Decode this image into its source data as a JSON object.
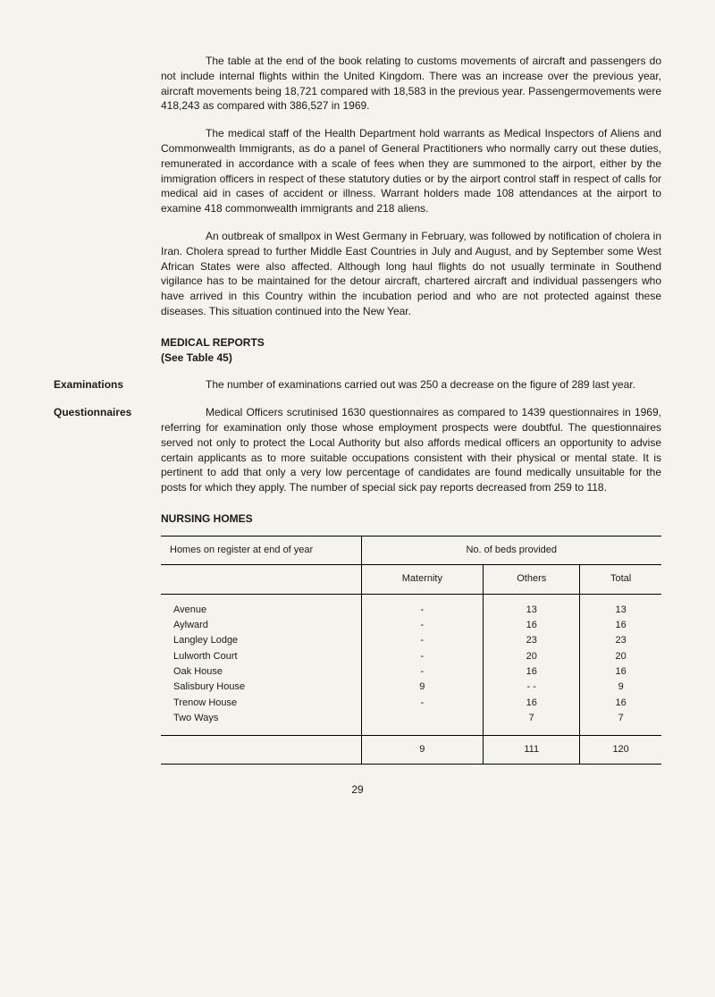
{
  "paragraphs": {
    "p1": "The table at the end of the book relating to customs movements of aircraft and passengers do not include internal flights within the United Kingdom. There was an increase over the previous year, aircraft movements being 18,721 compared with 18,583 in the previous year. Passengermovements were 418,243 as compared with 386,527 in 1969.",
    "p2": "The medical staff of the Health Department hold warrants as Medical Inspectors of Aliens and Commonwealth Immigrants, as do a panel of General Practitioners who normally carry out these duties, remunerated in accordance with a scale of fees when they are summoned to the airport, either by the immigration officers in respect of these statutory duties or by the airport control staff in respect of calls for medical aid in cases of accident or illness. Warrant holders made 108 attendances at the airport to examine 418 commonwealth immigrants and 218 aliens.",
    "p3": "An outbreak of smallpox in West Germany in February, was followed by notification of cholera in Iran. Cholera spread to further Middle East Countries in July and August, and by September some West African States were also affected. Although long haul flights do not usually terminate in Southend vigilance has to be maintained for the detour aircraft, chartered aircraft and individual passengers who have arrived in this Country within the incubation period and who are not protected against these diseases. This situation continued into the New Year."
  },
  "section1": {
    "heading": "MEDICAL REPORTS",
    "sub": "(See Table 45)"
  },
  "examinations": {
    "label": "Examinations",
    "text": "The number of examinations carried out was 250 a decrease on the figure of 289 last year."
  },
  "questionnaires": {
    "label": "Questionnaires",
    "text": "Medical Officers scrutinised 1630 questionnaires as compared to 1439 questionnaires in 1969, referring for examination only those whose employment prospects were doubtful. The questionnaires served not only to protect the Local Authority but also affords medical officers an opportunity to advise certain applicants as to more suitable occupations consistent with their physical or mental state. It is pertinent to add that only a very low percentage of candidates are found medically unsuitable for the posts for which they apply. The number of special sick pay reports decreased from 259 to 118."
  },
  "nursing": {
    "heading": "NURSING HOMES"
  },
  "table": {
    "header_homes": "Homes on register at end of year",
    "header_beds": "No. of beds provided",
    "col_maternity": "Maternity",
    "col_others": "Others",
    "col_total": "Total",
    "rows": [
      {
        "name": "Avenue",
        "maternity": "-",
        "others": "13",
        "total": "13"
      },
      {
        "name": "Aylward",
        "maternity": "-",
        "others": "16",
        "total": "16"
      },
      {
        "name": "Langley Lodge",
        "maternity": "-",
        "others": "23",
        "total": "23"
      },
      {
        "name": "Lulworth Court",
        "maternity": "-",
        "others": "20",
        "total": "20"
      },
      {
        "name": "Oak House",
        "maternity": "-",
        "others": "16",
        "total": "16"
      },
      {
        "name": "Salisbury House",
        "maternity": "9",
        "others": "- -",
        "total": "9"
      },
      {
        "name": "Trenow House",
        "maternity": "-",
        "others": "16",
        "total": "16"
      },
      {
        "name": "Two Ways",
        "maternity": "",
        "others": "7",
        "total": "7"
      }
    ],
    "totals": {
      "maternity": "9",
      "others": "111",
      "total": "120"
    }
  },
  "page_number": "29"
}
